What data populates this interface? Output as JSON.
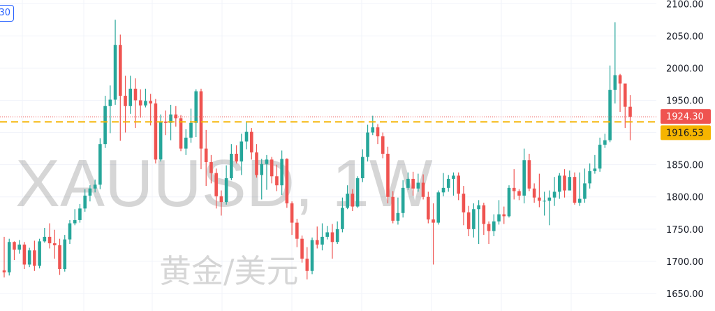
{
  "watermark": {
    "symbol_line": "XAUUSD, 1W",
    "description": "黄金/美元"
  },
  "interval_chip": "30",
  "price_badges": {
    "last": {
      "value": 1924.3,
      "label": "1924.30",
      "color": "#ef5350",
      "text_color": "#ffffff"
    },
    "level": {
      "value": 1916.53,
      "label": "1916.53",
      "color": "#f5b400",
      "text_color": "#131722"
    }
  },
  "colors": {
    "up": "#26a69a",
    "down": "#ef5350",
    "grid": "#f0f3fa",
    "axis_text": "#131722",
    "level_line": "#f5b400"
  },
  "chart_data": {
    "type": "candlestick",
    "symbol": "XAUUSD",
    "interval": "1W",
    "ylim": [
      1640,
      2110
    ],
    "y_ticks": [
      1650,
      1700,
      1750,
      1800,
      1850,
      1900,
      1950,
      2000,
      2050,
      2100
    ],
    "y_tick_labels": [
      "1650.00",
      "1700.00",
      "1750.00",
      "1800.00",
      "1850.00",
      "1900.00",
      "1950.00",
      "2000.00",
      "2050.00",
      "2100.00"
    ],
    "grid": true,
    "last_price": 1924.3,
    "horizontal_line": 1916.53,
    "candles": [
      [
        1686,
        1683,
        1738,
        1675
      ],
      [
        1683,
        1730,
        1735,
        1678
      ],
      [
        1730,
        1718,
        1731,
        1702
      ],
      [
        1718,
        1726,
        1733,
        1712
      ],
      [
        1726,
        1695,
        1730,
        1688
      ],
      [
        1695,
        1717,
        1721,
        1691
      ],
      [
        1717,
        1693,
        1732,
        1685
      ],
      [
        1693,
        1731,
        1735,
        1689
      ],
      [
        1731,
        1738,
        1752,
        1729
      ],
      [
        1738,
        1728,
        1759,
        1720
      ],
      [
        1728,
        1725,
        1749,
        1704
      ],
      [
        1725,
        1688,
        1735,
        1679
      ],
      [
        1688,
        1734,
        1741,
        1684
      ],
      [
        1734,
        1759,
        1764,
        1727
      ],
      [
        1759,
        1764,
        1781,
        1756
      ],
      [
        1764,
        1782,
        1789,
        1760
      ],
      [
        1782,
        1802,
        1812,
        1777
      ],
      [
        1802,
        1813,
        1818,
        1793
      ],
      [
        1813,
        1819,
        1827,
        1807
      ],
      [
        1819,
        1882,
        1891,
        1812
      ],
      [
        1882,
        1941,
        1957,
        1876
      ],
      [
        1941,
        1951,
        1973,
        1899
      ],
      [
        1951,
        2036,
        2075,
        1943
      ],
      [
        2036,
        1957,
        2052,
        1887
      ],
      [
        1957,
        1941,
        1988,
        1900
      ],
      [
        1941,
        1968,
        1988,
        1929
      ],
      [
        1968,
        1950,
        1984,
        1907
      ],
      [
        1950,
        1942,
        1967,
        1923
      ],
      [
        1942,
        1949,
        1968,
        1939
      ],
      [
        1949,
        1945,
        1960,
        1911
      ],
      [
        1945,
        1858,
        1952,
        1852
      ],
      [
        1858,
        1917,
        1928,
        1855
      ],
      [
        1917,
        1915,
        1934,
        1896
      ],
      [
        1915,
        1928,
        1943,
        1888
      ],
      [
        1928,
        1922,
        1941,
        1909
      ],
      [
        1922,
        1875,
        1927,
        1871
      ],
      [
        1875,
        1892,
        1905,
        1865
      ],
      [
        1892,
        1915,
        1937,
        1884
      ],
      [
        1915,
        1964,
        1967,
        1893
      ],
      [
        1964,
        1875,
        1968,
        1843
      ],
      [
        1875,
        1854,
        1904,
        1817
      ],
      [
        1854,
        1837,
        1865,
        1821
      ],
      [
        1837,
        1801,
        1844,
        1782
      ],
      [
        1801,
        1792,
        1810,
        1771
      ],
      [
        1792,
        1829,
        1849,
        1788
      ],
      [
        1829,
        1867,
        1882,
        1826
      ],
      [
        1867,
        1855,
        1880,
        1852
      ],
      [
        1855,
        1886,
        1898,
        1834
      ],
      [
        1886,
        1901,
        1916,
        1874
      ],
      [
        1901,
        1869,
        1907,
        1858
      ],
      [
        1869,
        1834,
        1882,
        1830
      ],
      [
        1834,
        1851,
        1859,
        1796
      ],
      [
        1851,
        1858,
        1865,
        1811
      ],
      [
        1858,
        1832,
        1862,
        1821
      ],
      [
        1832,
        1818,
        1850,
        1809
      ],
      [
        1818,
        1859,
        1872,
        1803
      ],
      [
        1859,
        1790,
        1860,
        1783
      ],
      [
        1790,
        1760,
        1793,
        1741
      ],
      [
        1760,
        1735,
        1766,
        1722
      ],
      [
        1735,
        1704,
        1740,
        1698
      ],
      [
        1704,
        1685,
        1722,
        1672
      ],
      [
        1685,
        1733,
        1737,
        1680
      ],
      [
        1733,
        1726,
        1754,
        1720
      ],
      [
        1726,
        1738,
        1759,
        1717
      ],
      [
        1738,
        1745,
        1755,
        1734
      ],
      [
        1745,
        1730,
        1758,
        1704
      ],
      [
        1730,
        1750,
        1762,
        1727
      ],
      [
        1750,
        1783,
        1799,
        1745
      ],
      [
        1783,
        1805,
        1818,
        1781
      ],
      [
        1805,
        1785,
        1812,
        1778
      ],
      [
        1785,
        1829,
        1832,
        1783
      ],
      [
        1829,
        1862,
        1874,
        1823
      ],
      [
        1862,
        1900,
        1912,
        1855
      ],
      [
        1900,
        1908,
        1926,
        1896
      ],
      [
        1908,
        1894,
        1913,
        1882
      ],
      [
        1894,
        1867,
        1900,
        1860
      ],
      [
        1867,
        1800,
        1878,
        1790
      ],
      [
        1800,
        1763,
        1809,
        1759
      ],
      [
        1763,
        1775,
        1799,
        1757
      ],
      [
        1775,
        1814,
        1826,
        1768
      ],
      [
        1814,
        1828,
        1838,
        1811
      ],
      [
        1828,
        1813,
        1839,
        1802
      ],
      [
        1813,
        1822,
        1836,
        1808
      ],
      [
        1822,
        1800,
        1835,
        1796
      ],
      [
        1800,
        1765,
        1808,
        1759
      ],
      [
        1765,
        1760,
        1790,
        1695
      ],
      [
        1760,
        1807,
        1810,
        1757
      ],
      [
        1807,
        1814,
        1837,
        1801
      ],
      [
        1814,
        1828,
        1834,
        1808
      ],
      [
        1828,
        1833,
        1838,
        1802
      ],
      [
        1833,
        1805,
        1838,
        1795
      ],
      [
        1805,
        1776,
        1817,
        1756
      ],
      [
        1776,
        1750,
        1786,
        1739
      ],
      [
        1750,
        1781,
        1790,
        1737
      ],
      [
        1781,
        1787,
        1795,
        1727
      ],
      [
        1787,
        1758,
        1791,
        1741
      ],
      [
        1758,
        1747,
        1762,
        1727
      ],
      [
        1747,
        1762,
        1773,
        1739
      ],
      [
        1762,
        1773,
        1795,
        1757
      ],
      [
        1773,
        1770,
        1785,
        1758
      ],
      [
        1770,
        1814,
        1818,
        1768
      ],
      [
        1814,
        1809,
        1843,
        1796
      ],
      [
        1809,
        1802,
        1812,
        1795
      ],
      [
        1802,
        1857,
        1875,
        1790
      ],
      [
        1857,
        1813,
        1867,
        1809
      ],
      [
        1813,
        1799,
        1821,
        1791
      ],
      [
        1799,
        1794,
        1836,
        1784
      ],
      [
        1794,
        1794,
        1808,
        1771
      ],
      [
        1794,
        1799,
        1810,
        1756
      ],
      [
        1799,
        1808,
        1831,
        1786
      ],
      [
        1808,
        1833,
        1837,
        1797
      ],
      [
        1833,
        1810,
        1843,
        1799
      ],
      [
        1810,
        1831,
        1841,
        1810
      ],
      [
        1831,
        1791,
        1838,
        1788
      ],
      [
        1791,
        1797,
        1838,
        1786
      ],
      [
        1797,
        1821,
        1844,
        1791
      ],
      [
        1821,
        1840,
        1852,
        1813
      ],
      [
        1840,
        1844,
        1865,
        1836
      ],
      [
        1844,
        1881,
        1892,
        1839
      ],
      [
        1881,
        1888,
        1898,
        1876
      ],
      [
        1888,
        1966,
        2004,
        1885
      ],
      [
        1966,
        1989,
        2071,
        1945
      ],
      [
        1989,
        1976,
        1991,
        1932
      ],
      [
        1976,
        1940,
        1962,
        1907
      ],
      [
        1940,
        1924.3,
        1958,
        1888
      ]
    ]
  }
}
